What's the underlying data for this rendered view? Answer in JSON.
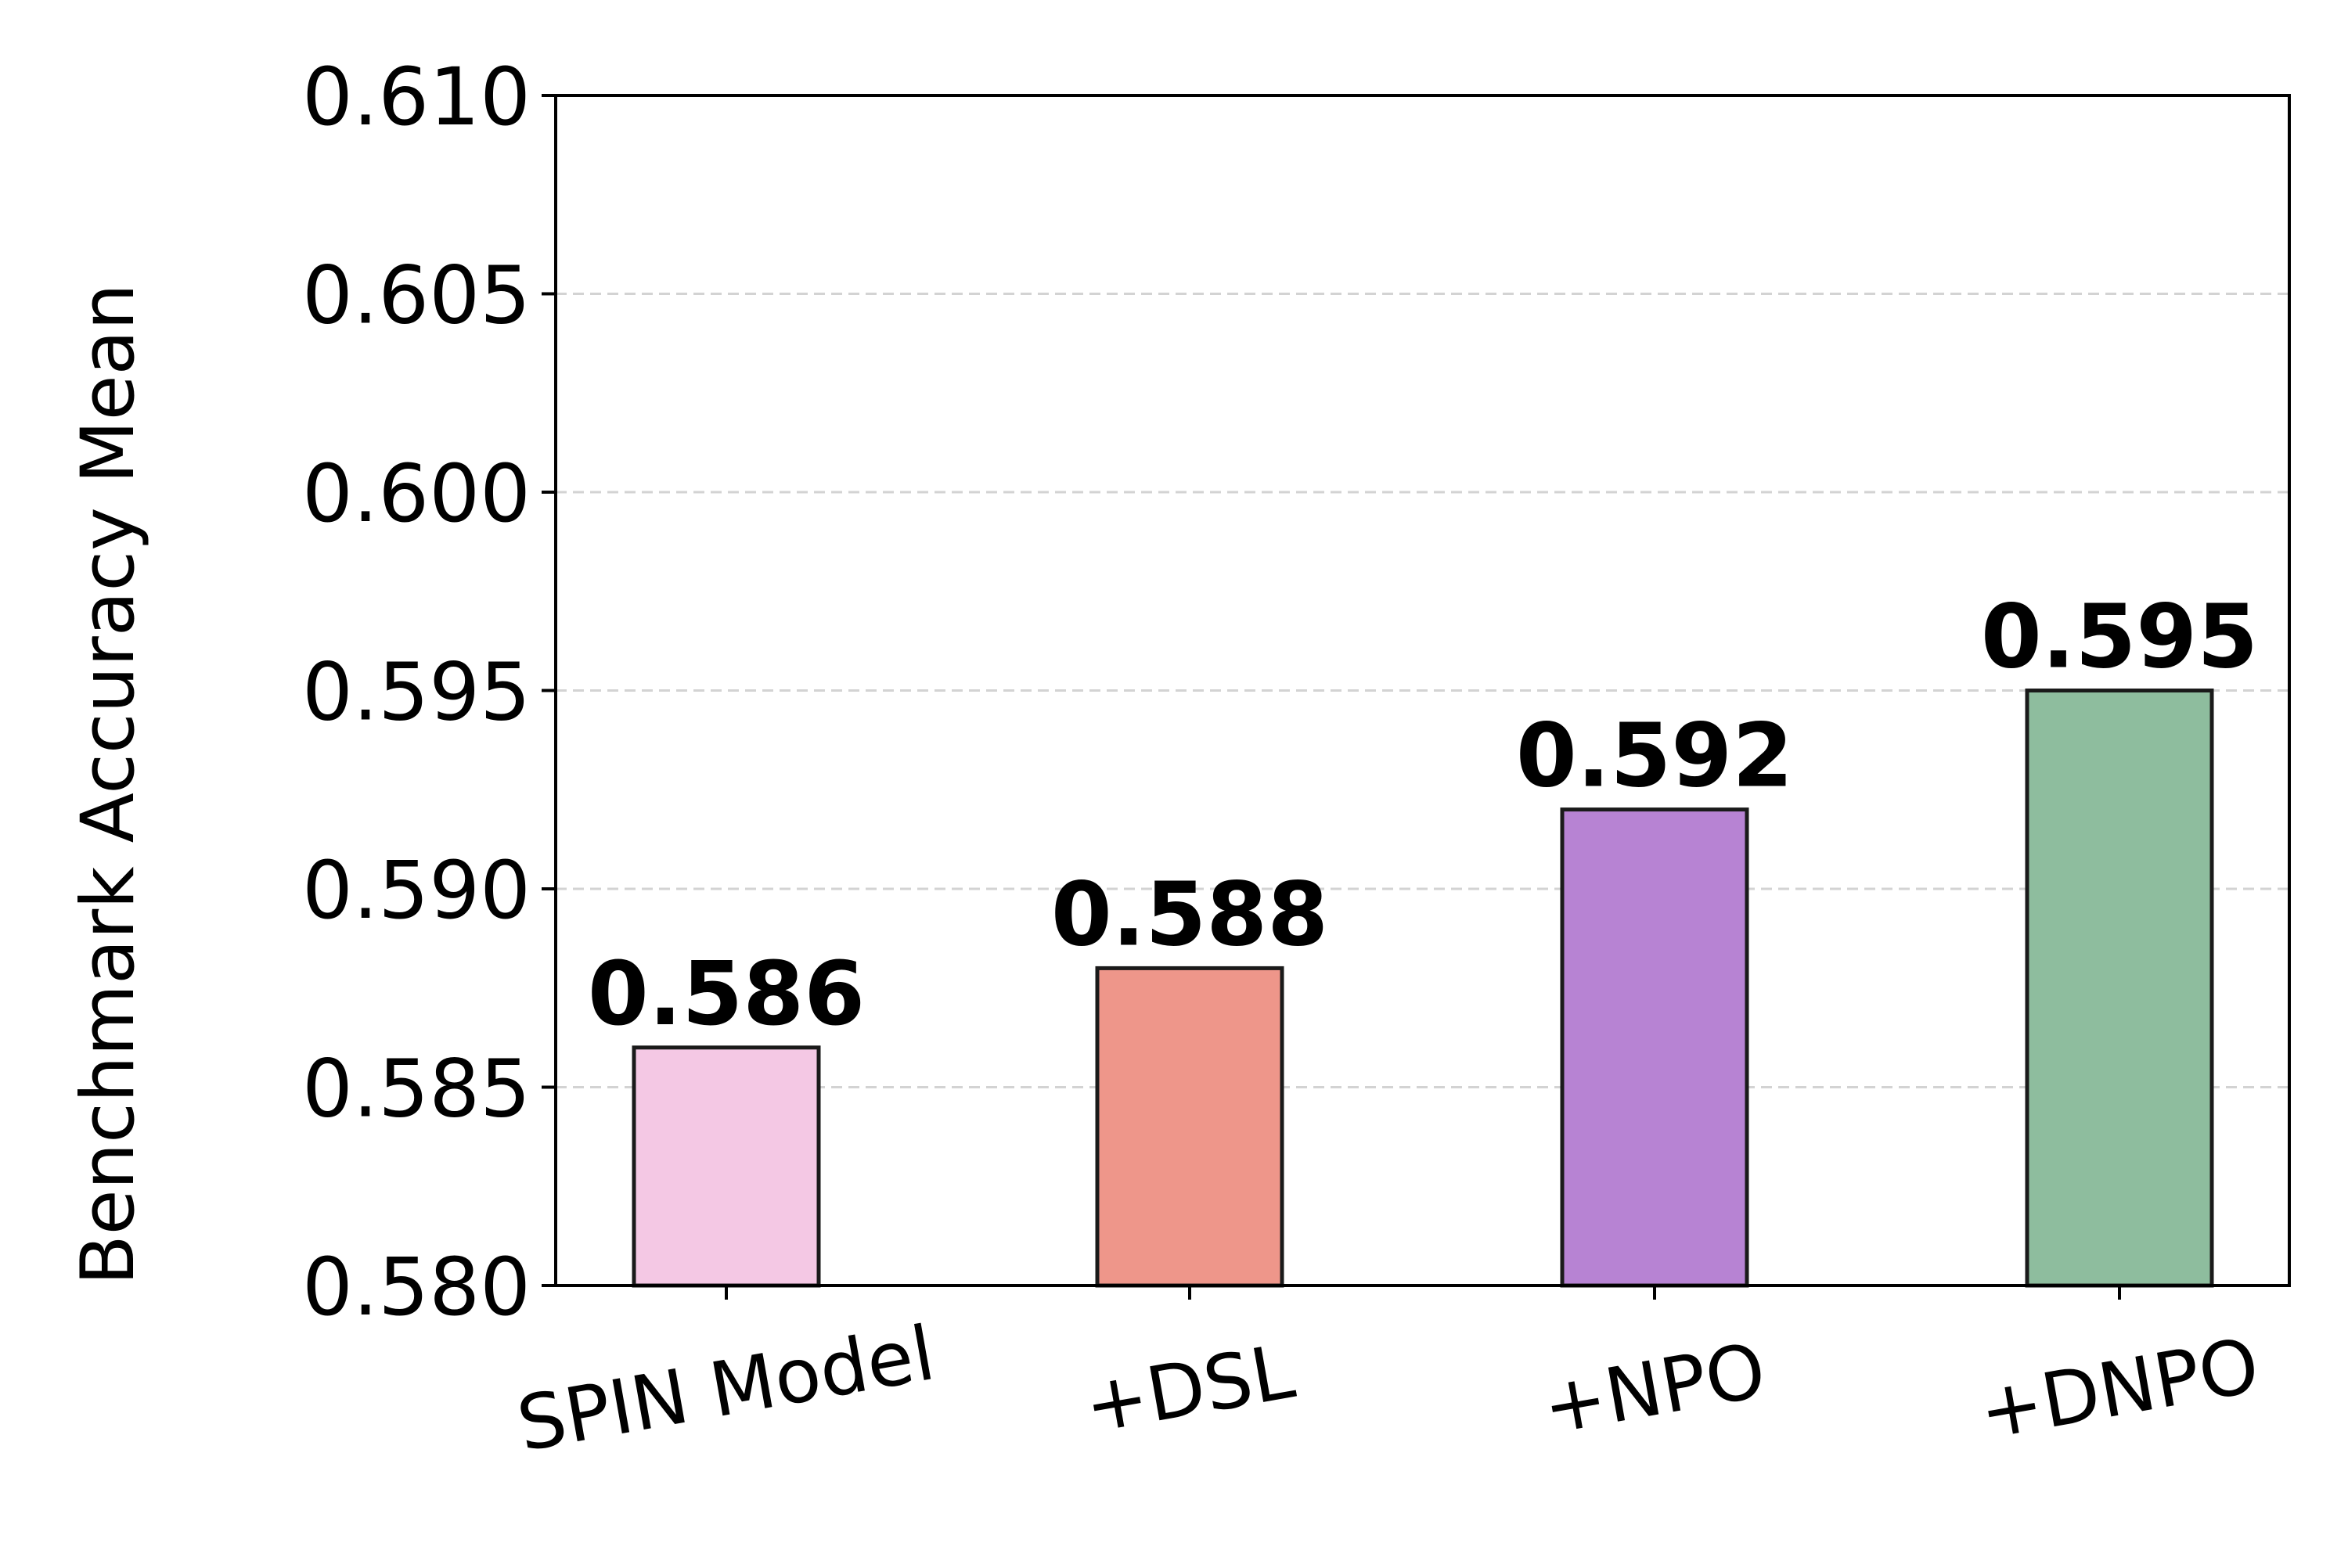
{
  "chart_data": {
    "type": "bar",
    "categories": [
      "SPIN Model",
      "+DSL",
      "+NPO",
      "+DNPO"
    ],
    "values": [
      0.586,
      0.588,
      0.592,
      0.595
    ],
    "value_labels": [
      "0.586",
      "0.588",
      "0.592",
      "0.595"
    ],
    "bar_colors": [
      "#f4c8e4",
      "#ee968a",
      "#b783d3",
      "#8ebd9e"
    ],
    "xlabel": "",
    "ylabel": "Benchmark Accuracy Mean",
    "ylim": [
      0.58,
      0.61
    ],
    "yticks": [
      0.58,
      0.585,
      0.59,
      0.595,
      0.6,
      0.605,
      0.61
    ],
    "ytick_labels": [
      "0.580",
      "0.585",
      "0.590",
      "0.595",
      "0.600",
      "0.605",
      "0.610"
    ],
    "grid": "horizontal dashed",
    "xtick_rotation_deg": -10
  }
}
